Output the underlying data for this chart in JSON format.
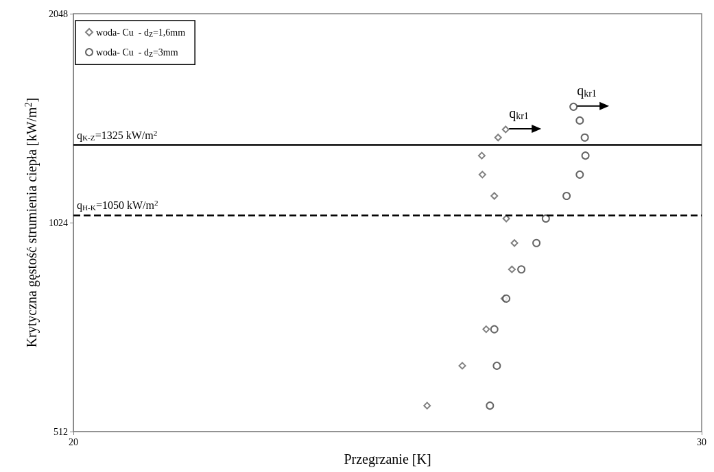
{
  "chart_data": {
    "type": "scatter",
    "xlabel": "Przegrzanie [K]",
    "ylabel": "Krytyczna gęstość strumienia ciepła [kW/m$^{2}$]",
    "log": "y",
    "xlim": [
      20,
      30
    ],
    "xticks": [
      20,
      30
    ],
    "ylim": [
      512,
      2048
    ],
    "yticks": [
      512,
      1024,
      2048
    ],
    "grid": false,
    "legend": "top left",
    "series": [
      {
        "name": "woda- Cu  - d$_{Z}$=1,6mm",
        "color": "#606060",
        "marker": "diamond",
        "x": [
          26.88,
          26.76,
          26.5,
          26.51,
          26.7,
          26.89,
          27.02,
          26.98,
          26.86,
          26.57,
          26.19,
          25.63
        ],
        "values": [
          1395,
          1358,
          1279,
          1201,
          1119,
          1038,
          957,
          877,
          796,
          719,
          637,
          558
        ]
      },
      {
        "name": "woda- Cu  - d$_{Z}$=3mm",
        "color": "#404040",
        "marker": "circle",
        "x": [
          27.96,
          28.06,
          28.14,
          28.15,
          28.06,
          27.85,
          27.52,
          27.37,
          27.13,
          26.89,
          26.7,
          26.74,
          26.63
        ],
        "values": [
          1504,
          1437,
          1358,
          1279,
          1201,
          1119,
          1038,
          957,
          877,
          796,
          719,
          637,
          558
        ]
      }
    ],
    "ref_lines": [
      {
        "axis": "y",
        "value": 1325,
        "label": "q$_{K-Z}$=1325 kW/m$^{2}$",
        "color": "#000000",
        "line_style": "solid"
      },
      {
        "axis": "y",
        "value": 1050,
        "label": "q$_{H-K}$=1050 kW/m$^{2}$",
        "color": "#000000",
        "line_style": "dashed"
      }
    ],
    "annotations": [
      {
        "text": "q$_{kr1}$",
        "x": 26.88,
        "y": 1395
      },
      {
        "text": "q$_{kr1}$",
        "x": 27.96,
        "y": 1504
      }
    ]
  }
}
